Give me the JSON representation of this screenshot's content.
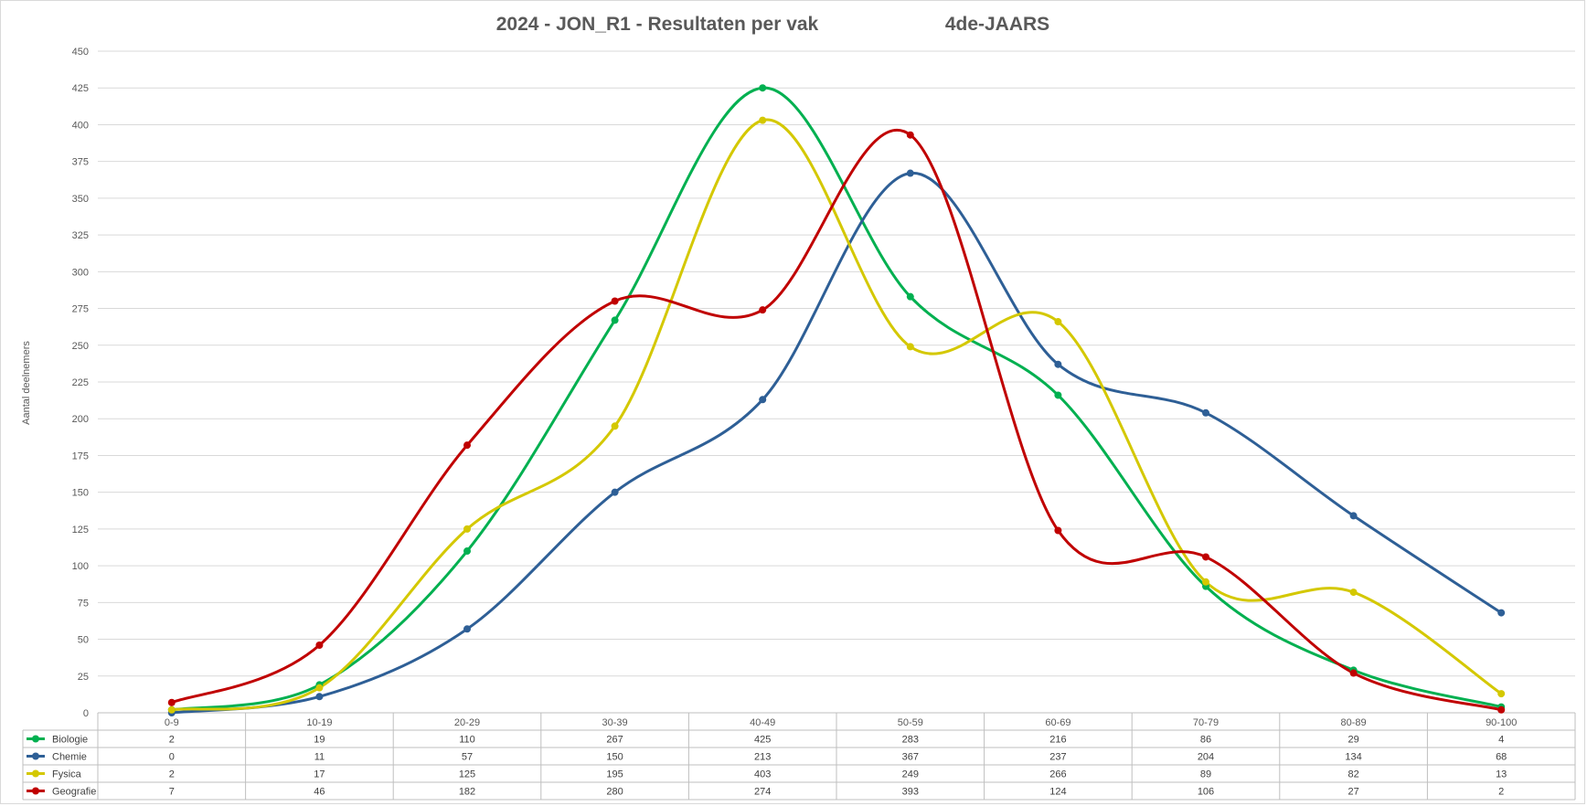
{
  "chart_data": {
    "type": "line",
    "title": "2024 - JON_R1 - Resultaten per vak",
    "subtitle": "4de-JAARS",
    "xlabel": "",
    "ylabel": "Aantal deelnemers",
    "ylim": [
      0,
      450
    ],
    "yticks": [
      "0",
      "25",
      "50",
      "75",
      "100",
      "125",
      "150",
      "175",
      "200",
      "225",
      "250",
      "275",
      "300",
      "325",
      "350",
      "375",
      "400",
      "425",
      "450"
    ],
    "grid": true,
    "legend": "data-table",
    "smooth": true,
    "categories": [
      "0-9",
      "10-19",
      "20-29",
      "30-39",
      "40-49",
      "50-59",
      "60-69",
      "70-79",
      "80-89",
      "90-100"
    ],
    "series": [
      {
        "name": "Biologie",
        "color": "#00b050",
        "values": [
          2,
          19,
          110,
          267,
          425,
          283,
          216,
          86,
          29,
          4
        ]
      },
      {
        "name": "Chemie",
        "color": "#2e5f96",
        "values": [
          0,
          11,
          57,
          150,
          213,
          367,
          237,
          204,
          134,
          68
        ]
      },
      {
        "name": "Fysica",
        "color": "#d4c800",
        "values": [
          2,
          17,
          125,
          195,
          403,
          249,
          266,
          89,
          82,
          13
        ]
      },
      {
        "name": "Geografie",
        "color": "#c00000",
        "values": [
          7,
          46,
          182,
          280,
          274,
          393,
          124,
          106,
          27,
          2
        ]
      }
    ]
  }
}
